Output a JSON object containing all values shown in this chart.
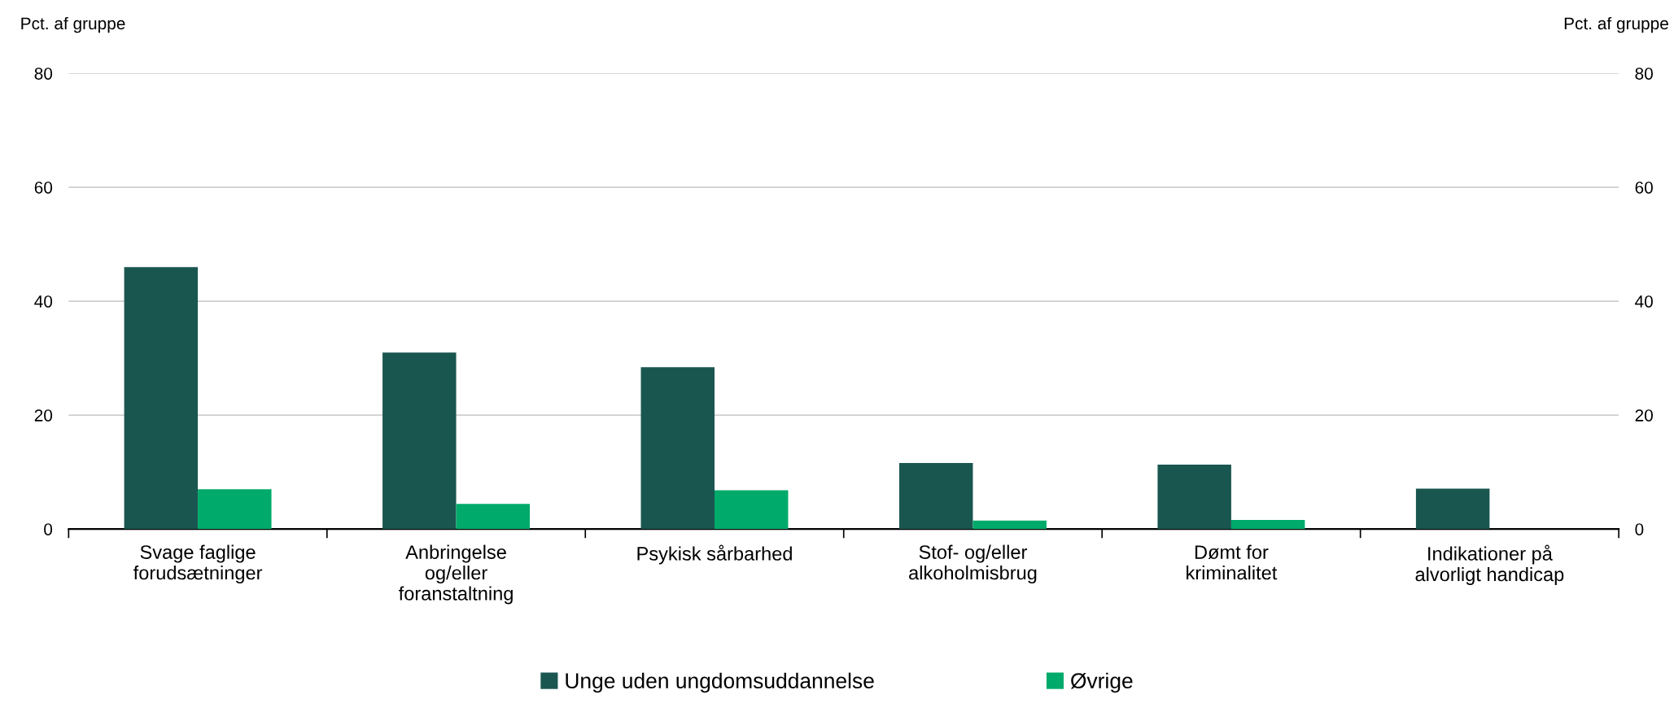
{
  "chart_data": {
    "type": "bar",
    "categories": [
      "Svage faglige\nforudsætninger",
      "Anbringelse\nog/eller\nforanstaltning",
      "Psykisk sårbarhed",
      "Stof- og/eller\nalkoholmisbrug",
      "Dømt for\nkriminalitet",
      "Indikationer på\nalvorligt handicap"
    ],
    "series": [
      {
        "name": "Unge uden ungdomsuddannelse",
        "color": "#1a5650",
        "values": [
          46.0,
          31.0,
          28.4,
          11.6,
          11.3,
          7.1
        ]
      },
      {
        "name": "Øvrige",
        "color": "#00aa6a",
        "values": [
          7.0,
          4.4,
          6.8,
          1.5,
          1.6,
          null
        ]
      }
    ],
    "ylabel": "Pct. af gruppe",
    "y2label": "Pct. af gruppe",
    "ylim": [
      0,
      80
    ],
    "yticks": [
      0,
      20,
      40,
      60,
      80
    ],
    "y2lim": [
      0,
      80
    ],
    "y2ticks": [
      0,
      20,
      40,
      60,
      80
    ],
    "grid": "y",
    "legend": "bottom"
  }
}
